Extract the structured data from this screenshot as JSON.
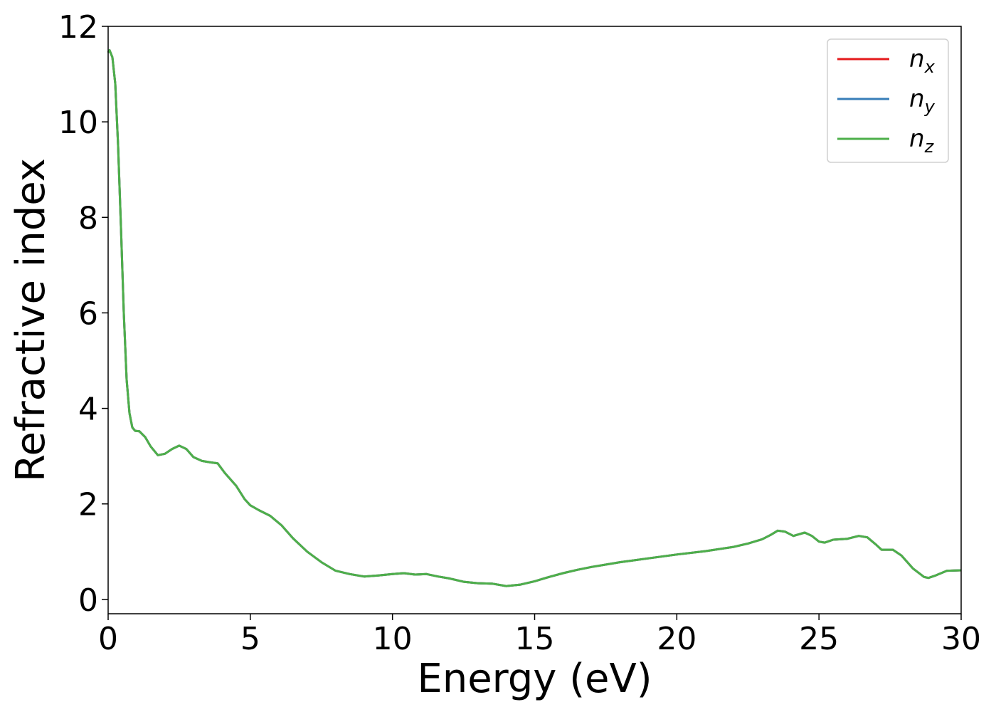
{
  "chart_data": {
    "type": "line",
    "title": "",
    "xlabel": "Energy (eV)",
    "ylabel": "Refractive index",
    "xlim": [
      0,
      30
    ],
    "ylim": [
      -0.3,
      12
    ],
    "xticks": [
      0,
      5,
      10,
      15,
      20,
      25,
      30
    ],
    "yticks": [
      0,
      2,
      4,
      6,
      8,
      10,
      12
    ],
    "grid": false,
    "legend_position": "top-right",
    "legend": [
      {
        "base": "n",
        "sub": "x",
        "color": "#e41a1c"
      },
      {
        "base": "n",
        "sub": "y",
        "color": "#377eb8"
      },
      {
        "base": "n",
        "sub": "z",
        "color": "#4daf4a"
      }
    ],
    "series_points": [
      [
        0.0,
        11.45
      ],
      [
        0.05,
        11.5
      ],
      [
        0.15,
        11.35
      ],
      [
        0.25,
        10.8
      ],
      [
        0.35,
        9.5
      ],
      [
        0.45,
        7.8
      ],
      [
        0.55,
        6.0
      ],
      [
        0.65,
        4.6
      ],
      [
        0.75,
        3.9
      ],
      [
        0.85,
        3.6
      ],
      [
        0.95,
        3.53
      ],
      [
        1.1,
        3.52
      ],
      [
        1.3,
        3.4
      ],
      [
        1.5,
        3.2
      ],
      [
        1.75,
        3.02
      ],
      [
        2.0,
        3.05
      ],
      [
        2.25,
        3.15
      ],
      [
        2.5,
        3.22
      ],
      [
        2.75,
        3.15
      ],
      [
        3.0,
        2.98
      ],
      [
        3.3,
        2.9
      ],
      [
        3.6,
        2.87
      ],
      [
        3.85,
        2.85
      ],
      [
        4.1,
        2.65
      ],
      [
        4.5,
        2.38
      ],
      [
        4.8,
        2.1
      ],
      [
        5.0,
        1.97
      ],
      [
        5.3,
        1.87
      ],
      [
        5.7,
        1.75
      ],
      [
        6.1,
        1.55
      ],
      [
        6.5,
        1.28
      ],
      [
        7.0,
        1.0
      ],
      [
        7.5,
        0.78
      ],
      [
        8.0,
        0.6
      ],
      [
        8.5,
        0.53
      ],
      [
        9.0,
        0.48
      ],
      [
        9.5,
        0.5
      ],
      [
        10.0,
        0.53
      ],
      [
        10.4,
        0.55
      ],
      [
        10.8,
        0.52
      ],
      [
        11.2,
        0.53
      ],
      [
        11.6,
        0.48
      ],
      [
        12.0,
        0.44
      ],
      [
        12.5,
        0.37
      ],
      [
        13.0,
        0.34
      ],
      [
        13.5,
        0.33
      ],
      [
        14.0,
        0.28
      ],
      [
        14.5,
        0.31
      ],
      [
        15.0,
        0.38
      ],
      [
        15.5,
        0.47
      ],
      [
        16.0,
        0.55
      ],
      [
        16.5,
        0.62
      ],
      [
        17.0,
        0.68
      ],
      [
        18.0,
        0.78
      ],
      [
        19.0,
        0.86
      ],
      [
        20.0,
        0.94
      ],
      [
        21.0,
        1.01
      ],
      [
        22.0,
        1.1
      ],
      [
        22.5,
        1.17
      ],
      [
        23.0,
        1.26
      ],
      [
        23.3,
        1.35
      ],
      [
        23.55,
        1.44
      ],
      [
        23.8,
        1.42
      ],
      [
        24.1,
        1.33
      ],
      [
        24.5,
        1.4
      ],
      [
        24.75,
        1.33
      ],
      [
        25.0,
        1.21
      ],
      [
        25.2,
        1.19
      ],
      [
        25.5,
        1.25
      ],
      [
        26.0,
        1.27
      ],
      [
        26.4,
        1.33
      ],
      [
        26.7,
        1.3
      ],
      [
        27.0,
        1.15
      ],
      [
        27.2,
        1.04
      ],
      [
        27.6,
        1.04
      ],
      [
        27.9,
        0.92
      ],
      [
        28.3,
        0.65
      ],
      [
        28.7,
        0.47
      ],
      [
        28.85,
        0.45
      ],
      [
        29.1,
        0.5
      ],
      [
        29.5,
        0.6
      ],
      [
        30.0,
        0.61
      ]
    ]
  }
}
